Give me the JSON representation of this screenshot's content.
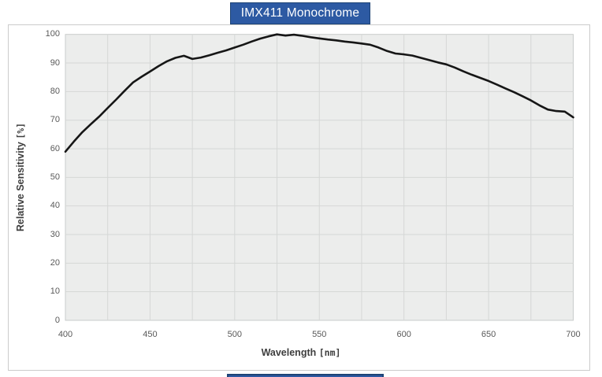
{
  "header": {
    "title": "IMX411 Monochrome"
  },
  "colors": {
    "banner_fill": "#2d5aa3",
    "banner_border": "#1e4476",
    "curve": "#161616",
    "plot_background": "#ecedec",
    "grid_line": "#d5d7d6",
    "plot_border": "#c9cccb",
    "panel_border": "#cbcbcb",
    "tick_text": "#595959",
    "axis_title_text": "#3e3e3e"
  },
  "chart_data": {
    "type": "line",
    "title": "IMX411 Monochrome",
    "xlabel": "Wavelength [nm]",
    "ylabel": "Relative Sensitivity [%]",
    "xlim": [
      400,
      700
    ],
    "ylim": [
      0,
      100
    ],
    "xticks": [
      400,
      450,
      500,
      550,
      600,
      650,
      700
    ],
    "yticks": [
      0,
      10,
      20,
      30,
      40,
      50,
      60,
      70,
      80,
      90,
      100
    ],
    "x_minor_grid_step": 25,
    "grid": "on",
    "legend": "none",
    "series": [
      {
        "name": "Relative sensitivity",
        "x": [
          400,
          405,
          410,
          415,
          420,
          425,
          430,
          435,
          440,
          445,
          450,
          455,
          460,
          465,
          470,
          475,
          480,
          485,
          490,
          495,
          500,
          505,
          510,
          515,
          520,
          525,
          530,
          535,
          540,
          545,
          550,
          555,
          560,
          565,
          570,
          575,
          580,
          585,
          590,
          595,
          600,
          605,
          610,
          615,
          620,
          625,
          630,
          635,
          640,
          645,
          650,
          655,
          660,
          665,
          670,
          675,
          680,
          685,
          690,
          695,
          700
        ],
        "values": [
          59.0,
          62.5,
          65.8,
          68.6,
          71.3,
          74.3,
          77.2,
          80.3,
          83.2,
          85.2,
          87.0,
          88.9,
          90.6,
          91.8,
          92.5,
          91.4,
          91.9,
          92.7,
          93.6,
          94.4,
          95.4,
          96.4,
          97.5,
          98.5,
          99.3,
          100.0,
          99.6,
          99.9,
          99.5,
          99.0,
          98.6,
          98.2,
          97.9,
          97.5,
          97.2,
          96.8,
          96.4,
          95.4,
          94.2,
          93.3,
          93.0,
          92.6,
          91.8,
          91.0,
          90.2,
          89.5,
          88.4,
          87.1,
          85.9,
          84.8,
          83.7,
          82.4,
          81.1,
          79.8,
          78.4,
          76.9,
          75.2,
          73.7,
          73.2,
          73.0,
          71.0
        ]
      }
    ]
  }
}
